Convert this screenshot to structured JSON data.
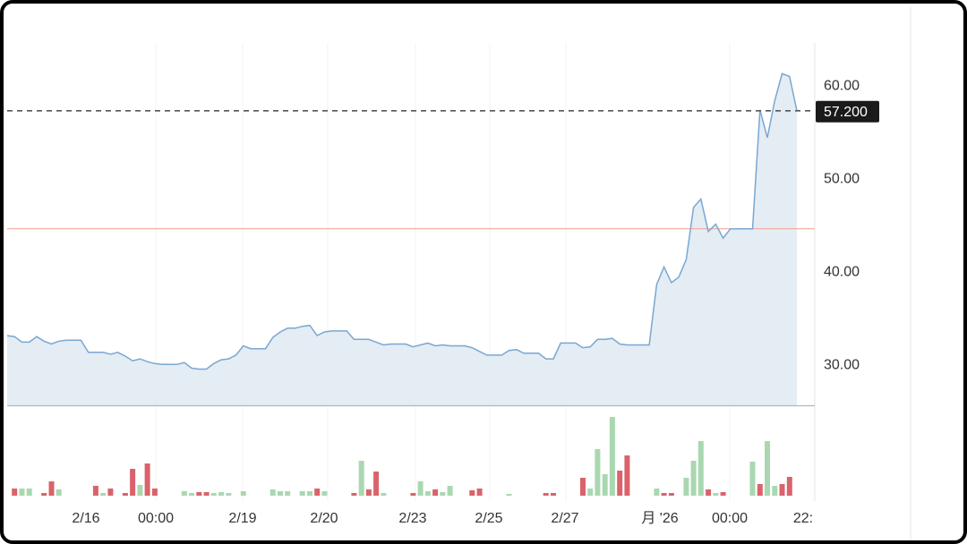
{
  "chart_data": {
    "type": "line",
    "price_axis": {
      "ticks": [
        30.0,
        40.0,
        50.0,
        60.0
      ],
      "tick_labels": [
        "30.00",
        "40.00",
        "50.00",
        "60.00"
      ],
      "ylim": [
        25.5,
        64.5
      ]
    },
    "x_axis": {
      "tick_labels": [
        "2/16",
        "00:00",
        "2/19",
        "2/20",
        "2/23",
        "2/25",
        "2/27",
        "月 '26",
        "00:00",
        "22:"
      ]
    },
    "current_price": {
      "value": 57.2,
      "label": "57.200"
    },
    "reference_line": {
      "value": 44.5
    },
    "colors": {
      "line": "#7aa7d2",
      "area": "#e4ecf4",
      "reference": "#f2a99a",
      "current_dash": "#555555",
      "tag_bg": "#1a1a1a",
      "volume_up": "#a9d8b0",
      "volume_down": "#d9636b"
    },
    "price_series": [
      [
        0,
        33.0
      ],
      [
        1,
        32.9
      ],
      [
        2,
        32.3
      ],
      [
        3,
        32.3
      ],
      [
        4,
        32.9
      ],
      [
        5,
        32.4
      ],
      [
        6,
        32.1
      ],
      [
        7,
        32.4
      ],
      [
        8,
        32.5
      ],
      [
        9,
        32.5
      ],
      [
        10,
        32.5
      ],
      [
        11,
        31.2
      ],
      [
        12,
        31.2
      ],
      [
        13,
        31.2
      ],
      [
        14,
        31.0
      ],
      [
        15,
        31.2
      ],
      [
        16,
        30.8
      ],
      [
        17,
        30.3
      ],
      [
        18,
        30.5
      ],
      [
        19,
        30.2
      ],
      [
        20,
        30.0
      ],
      [
        21,
        29.9
      ],
      [
        22,
        29.9
      ],
      [
        23,
        29.9
      ],
      [
        24,
        30.1
      ],
      [
        25,
        29.5
      ],
      [
        26,
        29.4
      ],
      [
        27,
        29.4
      ],
      [
        28,
        30.0
      ],
      [
        29,
        30.4
      ],
      [
        30,
        30.5
      ],
      [
        31,
        30.9
      ],
      [
        32,
        31.9
      ],
      [
        33,
        31.6
      ],
      [
        34,
        31.6
      ],
      [
        35,
        31.6
      ],
      [
        36,
        32.8
      ],
      [
        37,
        33.4
      ],
      [
        38,
        33.8
      ],
      [
        39,
        33.8
      ],
      [
        40,
        34.0
      ],
      [
        41,
        34.1
      ],
      [
        42,
        33.0
      ],
      [
        43,
        33.4
      ],
      [
        44,
        33.5
      ],
      [
        45,
        33.5
      ],
      [
        46,
        33.5
      ],
      [
        47,
        32.6
      ],
      [
        48,
        32.6
      ],
      [
        49,
        32.6
      ],
      [
        50,
        32.3
      ],
      [
        51,
        32.0
      ],
      [
        52,
        32.1
      ],
      [
        53,
        32.1
      ],
      [
        54,
        32.1
      ],
      [
        55,
        31.8
      ],
      [
        56,
        32.0
      ],
      [
        57,
        32.2
      ],
      [
        58,
        31.9
      ],
      [
        59,
        32.0
      ],
      [
        60,
        31.9
      ],
      [
        61,
        31.9
      ],
      [
        62,
        31.9
      ],
      [
        63,
        31.7
      ],
      [
        64,
        31.3
      ],
      [
        65,
        30.9
      ],
      [
        66,
        30.9
      ],
      [
        67,
        30.9
      ],
      [
        68,
        31.4
      ],
      [
        69,
        31.5
      ],
      [
        70,
        31.1
      ],
      [
        71,
        31.1
      ],
      [
        72,
        31.1
      ],
      [
        73,
        30.5
      ],
      [
        74,
        30.5
      ],
      [
        75,
        32.2
      ],
      [
        76,
        32.2
      ],
      [
        77,
        32.2
      ],
      [
        78,
        31.7
      ],
      [
        79,
        31.8
      ],
      [
        80,
        32.6
      ],
      [
        81,
        32.6
      ],
      [
        82,
        32.7
      ],
      [
        83,
        32.1
      ],
      [
        84,
        32.0
      ],
      [
        85,
        32.0
      ],
      [
        86,
        32.0
      ],
      [
        87,
        32.0
      ],
      [
        88,
        38.5
      ],
      [
        89,
        40.4
      ],
      [
        90,
        38.7
      ],
      [
        91,
        39.3
      ],
      [
        92,
        41.2
      ],
      [
        93,
        46.8
      ],
      [
        94,
        47.7
      ],
      [
        95,
        44.2
      ],
      [
        96,
        45.0
      ],
      [
        97,
        43.5
      ],
      [
        98,
        44.5
      ],
      [
        99,
        44.5
      ],
      [
        100,
        44.5
      ],
      [
        101,
        44.5
      ],
      [
        102,
        57.3
      ],
      [
        103,
        54.3
      ],
      [
        104,
        58.3
      ],
      [
        105,
        61.2
      ],
      [
        106,
        60.9
      ],
      [
        107,
        57.2
      ]
    ],
    "volume_series": [
      [
        1,
        8,
        "down"
      ],
      [
        2,
        8,
        "up"
      ],
      [
        3,
        8,
        "up"
      ],
      [
        5,
        3,
        "down"
      ],
      [
        6,
        16,
        "down"
      ],
      [
        7,
        7,
        "up"
      ],
      [
        12,
        11,
        "down"
      ],
      [
        13,
        3,
        "up"
      ],
      [
        14,
        8,
        "down"
      ],
      [
        16,
        3,
        "down"
      ],
      [
        17,
        30,
        "down"
      ],
      [
        18,
        12,
        "up"
      ],
      [
        19,
        36,
        "down"
      ],
      [
        20,
        8,
        "down"
      ],
      [
        24,
        5,
        "up"
      ],
      [
        25,
        3,
        "up"
      ],
      [
        26,
        4,
        "down"
      ],
      [
        27,
        4,
        "down"
      ],
      [
        28,
        3,
        "up"
      ],
      [
        29,
        4,
        "up"
      ],
      [
        30,
        3,
        "up"
      ],
      [
        32,
        5,
        "up"
      ],
      [
        36,
        7,
        "up"
      ],
      [
        37,
        5,
        "up"
      ],
      [
        38,
        5,
        "up"
      ],
      [
        40,
        5,
        "up"
      ],
      [
        41,
        5,
        "up"
      ],
      [
        42,
        8,
        "down"
      ],
      [
        43,
        5,
        "up"
      ],
      [
        47,
        3,
        "down"
      ],
      [
        48,
        39,
        "up"
      ],
      [
        49,
        7,
        "down"
      ],
      [
        50,
        27,
        "down"
      ],
      [
        51,
        3,
        "up"
      ],
      [
        55,
        3,
        "down"
      ],
      [
        56,
        16,
        "up"
      ],
      [
        57,
        5,
        "up"
      ],
      [
        58,
        7,
        "down"
      ],
      [
        59,
        4,
        "up"
      ],
      [
        60,
        11,
        "up"
      ],
      [
        63,
        6,
        "down"
      ],
      [
        64,
        8,
        "down"
      ],
      [
        68,
        2,
        "up"
      ],
      [
        73,
        3,
        "down"
      ],
      [
        74,
        3,
        "down"
      ],
      [
        78,
        20,
        "down"
      ],
      [
        79,
        8,
        "up"
      ],
      [
        80,
        52,
        "up"
      ],
      [
        81,
        24,
        "up"
      ],
      [
        82,
        88,
        "up"
      ],
      [
        83,
        28,
        "down"
      ],
      [
        84,
        45,
        "down"
      ],
      [
        88,
        8,
        "up"
      ],
      [
        89,
        3,
        "down"
      ],
      [
        90,
        3,
        "down"
      ],
      [
        92,
        20,
        "up"
      ],
      [
        93,
        39,
        "up"
      ],
      [
        94,
        61,
        "up"
      ],
      [
        95,
        7,
        "down"
      ],
      [
        96,
        3,
        "up"
      ],
      [
        97,
        4,
        "down"
      ],
      [
        101,
        38,
        "up"
      ],
      [
        102,
        13,
        "down"
      ],
      [
        103,
        61,
        "up"
      ],
      [
        104,
        11,
        "up"
      ],
      [
        105,
        13,
        "down"
      ],
      [
        106,
        21,
        "down"
      ]
    ]
  }
}
